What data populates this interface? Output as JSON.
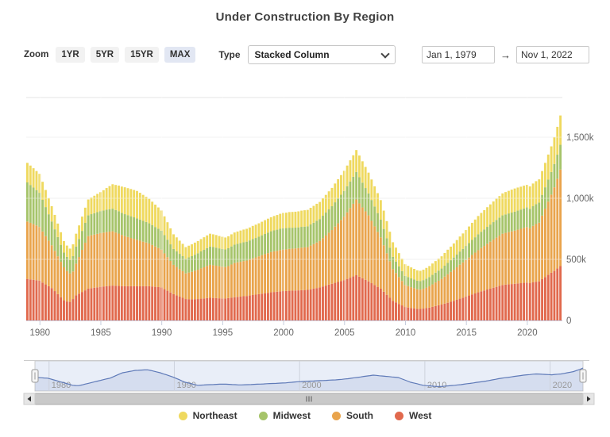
{
  "header": {
    "title": "Under Construction By Region"
  },
  "toolbar": {
    "zoom_label": "Zoom",
    "zoom_buttons": [
      {
        "label": "1YR",
        "selected": false
      },
      {
        "label": "5YR",
        "selected": false
      },
      {
        "label": "15YR",
        "selected": false
      },
      {
        "label": "MAX",
        "selected": true
      }
    ],
    "type_label": "Type",
    "type_value": "Stacked Column",
    "date_from": "Jan 1, 1979",
    "date_arrow": "→",
    "date_to": "Nov 1, 2022"
  },
  "chart_data": {
    "type": "bar",
    "stacking": "normal",
    "title": "Under Construction By Region",
    "x_unit": "quarter",
    "x_start": "1979 Q1",
    "x_end": "2022 Q4",
    "x_ticks": [
      1980,
      1985,
      1990,
      1995,
      2000,
      2005,
      2010,
      2015,
      2020
    ],
    "y_ticks": [
      {
        "value": 0,
        "label": "0"
      },
      {
        "value": 500,
        "label": "500k"
      },
      {
        "value": 1000,
        "label": "1,000k"
      },
      {
        "value": 1500,
        "label": "1,500k"
      }
    ],
    "ylim": [
      0,
      1824
    ],
    "y_unit": "thousands of housing units under construction",
    "grid": true,
    "legend_position": "bottom",
    "stack_bottom_to_top": [
      "West",
      "South",
      "Midwest",
      "Northeast"
    ],
    "series": [
      {
        "name": "Northeast",
        "color": "#EFD95F",
        "values": [
          160,
          159,
          158,
          156,
          155,
          148,
          140,
          133,
          125,
          118,
          110,
          103,
          95,
          93,
          92,
          97,
          105,
          111,
          117,
          124,
          130,
          136,
          143,
          149,
          155,
          166,
          178,
          189,
          200,
          205,
          210,
          215,
          220,
          221,
          223,
          224,
          225,
          219,
          213,
          206,
          200,
          191,
          183,
          174,
          165,
          154,
          143,
          131,
          120,
          114,
          108,
          101,
          95,
          96,
          97,
          99,
          100,
          101,
          103,
          104,
          105,
          104,
          103,
          101,
          100,
          98,
          98,
          99,
          100,
          101,
          103,
          104,
          105,
          106,
          108,
          109,
          110,
          111,
          113,
          114,
          115,
          118,
          120,
          123,
          125,
          126,
          128,
          129,
          130,
          131,
          133,
          134,
          135,
          136,
          138,
          139,
          140,
          143,
          145,
          148,
          150,
          154,
          158,
          161,
          165,
          169,
          173,
          176,
          180,
          178,
          175,
          173,
          170,
          168,
          165,
          163,
          160,
          150,
          140,
          130,
          120,
          114,
          108,
          101,
          95,
          92,
          90,
          87,
          85,
          84,
          85,
          88,
          90,
          93,
          95,
          98,
          100,
          104,
          108,
          111,
          115,
          119,
          123,
          126,
          130,
          135,
          140,
          145,
          150,
          154,
          158,
          161,
          165,
          169,
          173,
          176,
          180,
          183,
          185,
          188,
          190,
          189,
          187,
          186,
          185,
          183,
          186,
          188,
          190,
          195,
          200,
          205,
          210,
          219,
          228,
          240
        ]
      },
      {
        "name": "Midwest",
        "color": "#A6C46A",
        "values": [
          320,
          310,
          300,
          290,
          280,
          259,
          238,
          216,
          195,
          176,
          158,
          139,
          120,
          115,
          112,
          125,
          140,
          148,
          155,
          163,
          170,
          173,
          175,
          178,
          180,
          181,
          183,
          184,
          185,
          184,
          183,
          181,
          180,
          179,
          178,
          176,
          175,
          173,
          170,
          168,
          165,
          163,
          160,
          158,
          155,
          149,
          143,
          136,
          130,
          128,
          125,
          123,
          120,
          124,
          128,
          131,
          135,
          139,
          143,
          146,
          150,
          149,
          148,
          146,
          145,
          144,
          146,
          148,
          150,
          151,
          153,
          154,
          155,
          156,
          158,
          159,
          160,
          163,
          165,
          168,
          170,
          171,
          173,
          174,
          175,
          174,
          173,
          171,
          170,
          170,
          170,
          170,
          170,
          173,
          175,
          178,
          180,
          184,
          188,
          191,
          195,
          199,
          203,
          206,
          210,
          214,
          218,
          221,
          225,
          214,
          203,
          191,
          180,
          171,
          163,
          154,
          145,
          134,
          123,
          111,
          100,
          94,
          88,
          81,
          75,
          74,
          72,
          71,
          70,
          70,
          71,
          73,
          75,
          78,
          80,
          83,
          85,
          89,
          93,
          96,
          100,
          104,
          108,
          111,
          115,
          119,
          123,
          126,
          130,
          133,
          135,
          138,
          140,
          143,
          145,
          148,
          150,
          151,
          153,
          154,
          155,
          156,
          158,
          159,
          160,
          159,
          161,
          163,
          165,
          170,
          175,
          180,
          185,
          191,
          197,
          203
        ]
      },
      {
        "name": "South",
        "color": "#E9A44C",
        "values": [
          470,
          463,
          455,
          448,
          440,
          418,
          395,
          373,
          350,
          330,
          310,
          290,
          270,
          250,
          232,
          226,
          260,
          300,
          345,
          390,
          430,
          433,
          435,
          438,
          440,
          441,
          443,
          444,
          445,
          436,
          428,
          419,
          410,
          403,
          395,
          388,
          380,
          373,
          365,
          358,
          350,
          340,
          330,
          320,
          310,
          293,
          275,
          258,
          240,
          233,
          225,
          218,
          210,
          218,
          225,
          233,
          240,
          248,
          255,
          263,
          270,
          268,
          265,
          263,
          260,
          258,
          262,
          271,
          280,
          283,
          285,
          288,
          290,
          295,
          300,
          305,
          310,
          315,
          320,
          325,
          330,
          333,
          335,
          338,
          340,
          341,
          343,
          344,
          345,
          346,
          348,
          349,
          350,
          358,
          365,
          373,
          380,
          395,
          410,
          425,
          440,
          460,
          480,
          500,
          520,
          545,
          570,
          595,
          620,
          600,
          580,
          560,
          540,
          510,
          480,
          450,
          420,
          380,
          340,
          300,
          260,
          240,
          220,
          200,
          180,
          175,
          170,
          165,
          160,
          158,
          162,
          168,
          175,
          184,
          193,
          201,
          210,
          221,
          233,
          244,
          255,
          266,
          278,
          289,
          300,
          311,
          323,
          334,
          345,
          355,
          365,
          375,
          385,
          394,
          403,
          411,
          420,
          424,
          428,
          431,
          435,
          440,
          445,
          450,
          455,
          450,
          462,
          472,
          480,
          520,
          560,
          600,
          640,
          685,
          735,
          790
        ]
      },
      {
        "name": "West",
        "color": "#E1694D",
        "values": [
          340,
          336,
          333,
          329,
          325,
          310,
          295,
          280,
          265,
          240,
          215,
          190,
          165,
          155,
          152,
          175,
          205,
          219,
          233,
          246,
          260,
          264,
          268,
          271,
          275,
          278,
          280,
          283,
          285,
          284,
          283,
          281,
          280,
          280,
          280,
          280,
          280,
          280,
          280,
          280,
          280,
          278,
          275,
          273,
          270,
          256,
          243,
          229,
          215,
          205,
          195,
          185,
          175,
          174,
          173,
          174,
          175,
          178,
          180,
          183,
          185,
          184,
          183,
          181,
          180,
          179,
          183,
          187,
          190,
          193,
          195,
          198,
          200,
          204,
          208,
          211,
          215,
          219,
          223,
          226,
          230,
          233,
          235,
          238,
          240,
          241,
          243,
          244,
          245,
          246,
          248,
          249,
          250,
          255,
          260,
          265,
          270,
          278,
          285,
          293,
          300,
          308,
          315,
          323,
          330,
          340,
          350,
          360,
          370,
          358,
          345,
          333,
          320,
          305,
          290,
          275,
          260,
          235,
          210,
          185,
          160,
          148,
          135,
          123,
          110,
          106,
          102,
          99,
          95,
          94,
          97,
          101,
          105,
          111,
          118,
          124,
          130,
          138,
          145,
          153,
          160,
          169,
          178,
          186,
          195,
          204,
          213,
          221,
          230,
          238,
          245,
          253,
          260,
          268,
          275,
          283,
          290,
          293,
          295,
          298,
          300,
          303,
          305,
          308,
          310,
          305,
          312,
          317,
          320,
          338,
          355,
          373,
          390,
          405,
          425,
          445
        ]
      }
    ]
  },
  "navigator": {
    "series_source": "Northeast",
    "labels": [
      "1980",
      "1990",
      "2000",
      "2010",
      "2020"
    ]
  },
  "legend": {
    "items": [
      {
        "label": "Northeast",
        "color": "#EFD95F"
      },
      {
        "label": "Midwest",
        "color": "#A6C46A"
      },
      {
        "label": "South",
        "color": "#E9A44C"
      },
      {
        "label": "West",
        "color": "#E1694D"
      }
    ]
  }
}
